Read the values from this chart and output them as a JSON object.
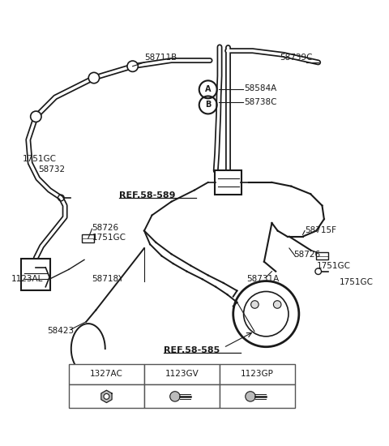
{
  "bg_color": "#ffffff",
  "line_color": "#1a1a1a",
  "fig_width": 4.8,
  "fig_height": 5.5,
  "dpi": 100,
  "table_cols": [
    "1327AC",
    "1123GV",
    "1123GP"
  ],
  "border_color": "#555555"
}
